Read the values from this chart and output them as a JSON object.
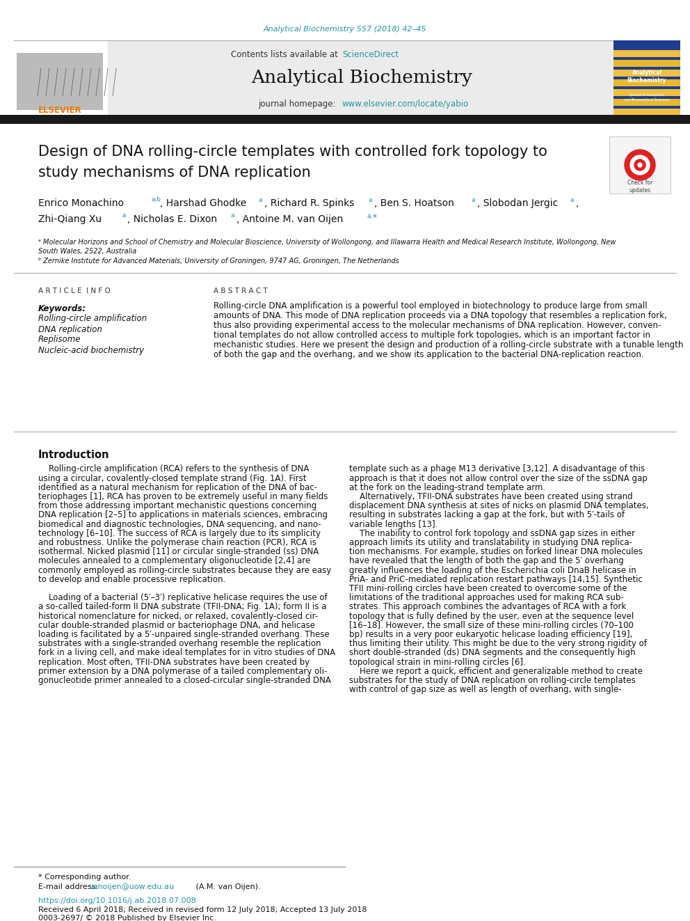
{
  "page_title_top": "Analytical Biochemistry 557 (2018) 42–45",
  "journal_name": "Analytical Biochemistry",
  "contents_text": "Contents lists available at",
  "science_direct": "ScienceDirect",
  "journal_homepage_label": "journal homepage:",
  "journal_homepage_url": "www.elsevier.com/locate/yabio",
  "article_title_line1": "Design of DNA rolling-circle templates with controlled fork topology to",
  "article_title_line2": "study mechanisms of DNA replication",
  "article_info_header": "ARTICLE INFO",
  "keywords_label": "Keywords:",
  "keywords": [
    "Rolling-circle amplification",
    "DNA replication",
    "Replisome",
    "Nucleic-acid biochemistry"
  ],
  "abstract_header": "ABSTRACT",
  "intro_header": "Introduction",
  "footer_star": "* Corresponding author.",
  "footer_email_label": "E-mail address: ",
  "footer_email": "vanoijen@uow.edu.au",
  "footer_email_suffix": " (A.M. van Oijen).",
  "footer_doi": "https://doi.org/10.1016/j.ab.2018.07.008",
  "footer_received": "Received 6 April 2018; Received in revised form 12 July 2018; Accepted 13 July 2018",
  "footer_issn": "0003-2697/ © 2018 Published by Elsevier Inc.",
  "bg_color": "#ffffff",
  "header_bg": "#ebebeb",
  "dark_bar_color": "#1a1a1a",
  "teal_color": "#2196a0",
  "link_color": "#2196a0",
  "elsevier_orange": "#f07800",
  "abstract_lines": [
    "Rolling-circle DNA amplification is a powerful tool employed in biotechnology to produce large from small",
    "amounts of DNA. This mode of DNA replication proceeds via a DNA topology that resembles a replication fork,",
    "thus also providing experimental access to the molecular mechanisms of DNA replication. However, conven-",
    "tional templates do not allow controlled access to multiple fork topologies, which is an important factor in",
    "mechanistic studies. Here we present the design and production of a rolling-circle substrate with a tunable length",
    "of both the gap and the overhang, and we show its application to the bacterial DNA-replication reaction."
  ],
  "left_intro": [
    "    Rolling-circle amplification (RCA) refers to the synthesis of DNA",
    "using a circular, covalently-closed template strand (Fig. 1A). First",
    "identified as a natural mechanism for replication of the DNA of bac-",
    "teriophages [1], RCA has proven to be extremely useful in many fields",
    "from those addressing important mechanistic questions concerning",
    "DNA replication [2–5] to applications in materials sciences, embracing",
    "biomedical and diagnostic technologies, DNA sequencing, and nano-",
    "technology [6–10]. The success of RCA is largely due to its simplicity",
    "and robustness. Unlike the polymerase chain reaction (PCR), RCA is",
    "isothermal. Nicked plasmid [11] or circular single-stranded (ss) DNA",
    "molecules annealed to a complementary oligonucleotide [2,4] are",
    "commonly employed as rolling-circle substrates because they are easy",
    "to develop and enable processive replication.",
    "",
    "    Loading of a bacterial (5′–3′) replicative helicase requires the use of",
    "a so-called tailed-form II DNA substrate (TFII-DNA; Fig. 1A); form II is a",
    "historical nomenclature for nicked, or relaxed, covalently-closed cir-",
    "cular double-stranded plasmid or bacteriophage DNA, and helicase",
    "loading is facilitated by a 5′-unpaired single-stranded overhang. These",
    "substrates with a single-stranded overhang resemble the replication",
    "fork in a living cell, and make ideal templates for in vitro studies of DNA",
    "replication. Most often, TFII-DNA substrates have been created by",
    "primer extension by a DNA polymerase of a tailed complementary oli-",
    "gonucleotide primer annealed to a closed-circular single-stranded DNA"
  ],
  "right_intro": [
    "template such as a phage M13 derivative [3,12]. A disadvantage of this",
    "approach is that it does not allow control over the size of the ssDNA gap",
    "at the fork on the leading-strand template arm.",
    "    Alternatively, TFII-DNA substrates have been created using strand",
    "displacement DNA synthesis at sites of nicks on plasmid DNA templates,",
    "resulting in substrates lacking a gap at the fork, but with 5′-tails of",
    "variable lengths [13].",
    "    The inability to control fork topology and ssDNA gap sizes in either",
    "approach limits its utility and translatability in studying DNA replica-",
    "tion mechanisms. For example, studies on forked linear DNA molecules",
    "have revealed that the length of both the gap and the 5′ overhang",
    "greatly influences the loading of the Escherichia coli DnaB helicase in",
    "PriA- and PriC-mediated replication restart pathways [14,15]. Synthetic",
    "TFII mini-rolling circles have been created to overcome some of the",
    "limitations of the traditional approaches used for making RCA sub-",
    "strates. This approach combines the advantages of RCA with a fork",
    "topology that is fully defined by the user, even at the sequence level",
    "[16–18]. However, the small size of these mini-rolling circles (70–100",
    "bp) results in a very poor eukaryotic helicase loading efficiency [19],",
    "thus limiting their utility. This might be due to the very strong rigidity of",
    "short double-stranded (ds) DNA segments and the consequently high",
    "topological strain in mini-rolling circles [6].",
    "    Here we report a quick, efficient and generalizable method to create",
    "substrates for the study of DNA replication on rolling-circle templates",
    "with control of gap size as well as length of overhang, with single-"
  ]
}
